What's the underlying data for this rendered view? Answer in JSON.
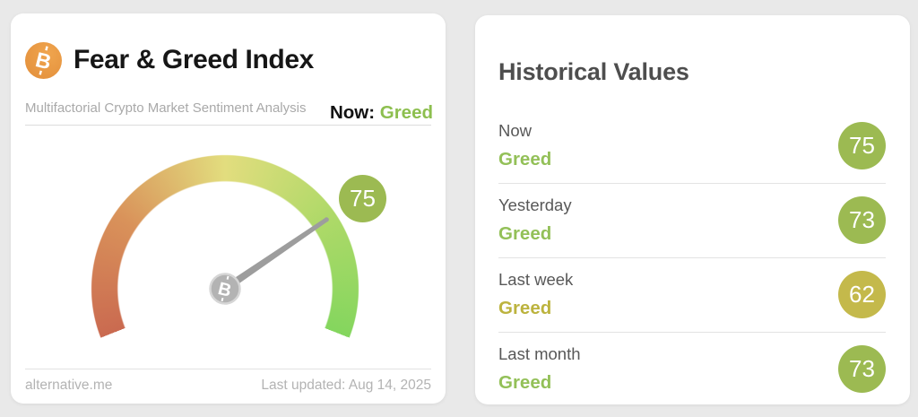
{
  "left_card": {
    "title": "Fear & Greed Index",
    "subtitle": "Multifactorial Crypto Market Sentiment Analysis",
    "logo": {
      "glyph": "B",
      "circle_color": "#e8963f"
    },
    "now": {
      "label": "Now:",
      "value": "Greed",
      "value_color": "#8dbf4f"
    },
    "gauge": {
      "value": 75,
      "min": 0,
      "max": 100,
      "classification": "Greed",
      "start_angle_deg": 201.5,
      "sweep_deg": 223,
      "arc_colors": [
        "#ca6a50",
        "#d9925a",
        "#e2dd7e",
        "#aed968",
        "#84d65e"
      ],
      "badge_color": "#9cba52",
      "needle_color": "#9d9d9d",
      "hub_fill": "#b3b3b3",
      "hub_ring": "#d6d6d6",
      "hub_glyph": "B"
    },
    "footer": {
      "site": "alternative.me",
      "updated": "Last updated: Aug 14, 2025"
    }
  },
  "right_card": {
    "title": "Historical Values",
    "rows": [
      {
        "label": "Now",
        "classification": "Greed",
        "value": 75,
        "text_color": "#93c058",
        "badge_color": "#9cba52"
      },
      {
        "label": "Yesterday",
        "classification": "Greed",
        "value": 73,
        "text_color": "#93c058",
        "badge_color": "#9cba52"
      },
      {
        "label": "Last week",
        "classification": "Greed",
        "value": 62,
        "text_color": "#bcb33e",
        "badge_color": "#c4b94b"
      },
      {
        "label": "Last month",
        "classification": "Greed",
        "value": 73,
        "text_color": "#93c058",
        "badge_color": "#9cba52"
      }
    ]
  }
}
